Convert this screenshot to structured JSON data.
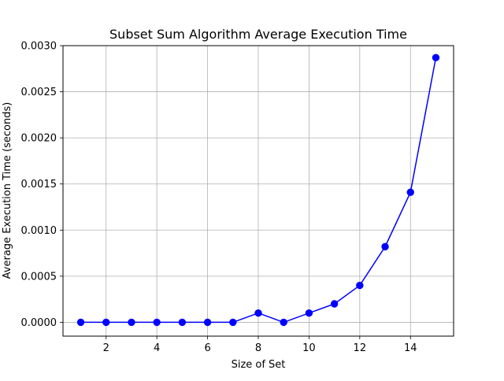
{
  "chart_data": {
    "type": "line",
    "title": "Subset Sum Algorithm Average Execution Time",
    "xlabel": "Size of Set",
    "ylabel": "Average Execution Time (seconds)",
    "xlim": [
      0.3,
      15.7
    ],
    "ylim": [
      -0.00015,
      0.003
    ],
    "xticks": [
      2,
      4,
      6,
      8,
      10,
      12,
      14
    ],
    "xtick_labels": [
      "2",
      "4",
      "6",
      "8",
      "10",
      "12",
      "14"
    ],
    "yticks": [
      0,
      0.0005,
      0.001,
      0.0015,
      0.002,
      0.0025,
      0.003
    ],
    "ytick_labels": [
      "0.0000",
      "0.0005",
      "0.0010",
      "0.0015",
      "0.0020",
      "0.0025",
      "0.0030"
    ],
    "grid": true,
    "series": [
      {
        "color": "#0000ff",
        "marker": "circle",
        "x": [
          1,
          2,
          3,
          4,
          5,
          6,
          7,
          8,
          9,
          10,
          11,
          12,
          13,
          14,
          15
        ],
        "y": [
          0.0,
          0.0,
          0.0,
          0.0,
          0.0,
          0.0,
          0.0,
          0.0001,
          0.0,
          0.0001,
          0.0002,
          0.0004,
          0.00082,
          0.00141,
          0.00287
        ]
      }
    ]
  }
}
